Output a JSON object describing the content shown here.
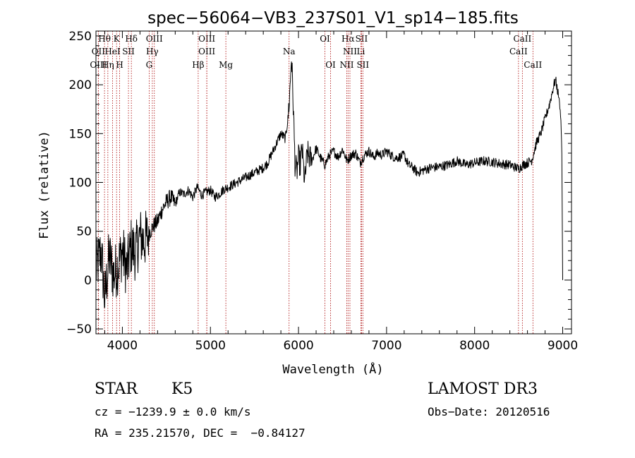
{
  "chart_data": {
    "type": "line",
    "title": "spec−56064−VB3_237S01_V1_sp14−185.fits",
    "xlabel": "Wavelength (Å)",
    "ylabel": "Flux (relative)",
    "xlim": [
      3700,
      9100
    ],
    "ylim": [
      -55,
      255
    ],
    "xticks": [
      4000,
      5000,
      6000,
      7000,
      8000,
      9000
    ],
    "yticks": [
      -50,
      0,
      50,
      100,
      150,
      200,
      250
    ],
    "ytick_labels": [
      "−50",
      "0",
      "50",
      "100",
      "150",
      "200",
      "250"
    ],
    "series": [
      {
        "name": "flux",
        "x": [
          3700,
          3760,
          3800,
          3850,
          3900,
          3950,
          4000,
          4050,
          4100,
          4150,
          4200,
          4250,
          4300,
          4350,
          4400,
          4450,
          4500,
          4550,
          4600,
          4650,
          4700,
          4750,
          4800,
          4850,
          4900,
          4950,
          5000,
          5050,
          5100,
          5150,
          5200,
          5300,
          5400,
          5500,
          5600,
          5650,
          5700,
          5750,
          5800,
          5850,
          5880,
          5900,
          5920,
          5940,
          5960,
          5980,
          6000,
          6020,
          6040,
          6070,
          6100,
          6150,
          6200,
          6250,
          6300,
          6350,
          6400,
          6450,
          6500,
          6550,
          6600,
          6650,
          6700,
          6750,
          6800,
          6850,
          6900,
          6950,
          7000,
          7050,
          7100,
          7150,
          7200,
          7250,
          7300,
          7350,
          7400,
          7500,
          7600,
          7700,
          7800,
          7900,
          8000,
          8100,
          8200,
          8300,
          8400,
          8450,
          8500,
          8550,
          8600,
          8650,
          8700,
          8750,
          8800,
          8850,
          8900,
          8920,
          8940,
          8960,
          8980,
          8990,
          9000
        ],
        "y": [
          10,
          30,
          -20,
          25,
          5,
          15,
          30,
          10,
          35,
          28,
          45,
          40,
          48,
          55,
          60,
          72,
          80,
          85,
          78,
          90,
          88,
          92,
          85,
          95,
          87,
          90,
          92,
          85,
          88,
          93,
          95,
          100,
          105,
          110,
          115,
          120,
          130,
          140,
          150,
          145,
          165,
          190,
          230,
          180,
          120,
          110,
          125,
          118,
          135,
          100,
          130,
          122,
          135,
          125,
          118,
          128,
          132,
          126,
          134,
          122,
          128,
          130,
          120,
          128,
          132,
          126,
          130,
          128,
          132,
          128,
          125,
          126,
          128,
          118,
          115,
          110,
          112,
          115,
          116,
          118,
          122,
          118,
          120,
          122,
          121,
          119,
          118,
          116,
          114,
          118,
          120,
          123,
          140,
          150,
          165,
          180,
          200,
          205,
          195,
          185,
          165,
          130,
          0
        ]
      }
    ],
    "line_marks": [
      {
        "label": "Hθ",
        "x": 3797,
        "row": 1
      },
      {
        "label": "K",
        "x": 3934,
        "row": 1
      },
      {
        "label": "Hδ",
        "x": 4102,
        "row": 1
      },
      {
        "label": "OIII",
        "x": 4363,
        "row": 1
      },
      {
        "label": "OIII",
        "x": 4959,
        "row": 1
      },
      {
        "label": "OI",
        "x": 6300,
        "row": 1
      },
      {
        "label": "Hα",
        "x": 6563,
        "row": 1
      },
      {
        "label": "SII",
        "x": 6716,
        "row": 1
      },
      {
        "label": "CaII",
        "x": 8542,
        "row": 1
      },
      {
        "label": "OII",
        "x": 3727,
        "row": 2
      },
      {
        "label": "HeI",
        "x": 3889,
        "row": 2
      },
      {
        "label": "SII",
        "x": 4069,
        "row": 2
      },
      {
        "label": "Hγ",
        "x": 4340,
        "row": 2
      },
      {
        "label": "OIII",
        "x": 4959,
        "row": 2
      },
      {
        "label": "Na",
        "x": 5893,
        "row": 2
      },
      {
        "label": "NII",
        "x": 6584,
        "row": 2
      },
      {
        "label": "Li",
        "x": 6708,
        "row": 2
      },
      {
        "label": "CaII",
        "x": 8498,
        "row": 2
      },
      {
        "label": "OIII",
        "x": 3727,
        "row": 3
      },
      {
        "label": "Hη",
        "x": 3835,
        "row": 3
      },
      {
        "label": "H",
        "x": 3969,
        "row": 3
      },
      {
        "label": "G",
        "x": 4304,
        "row": 3
      },
      {
        "label": "Hβ",
        "x": 4861,
        "row": 3
      },
      {
        "label": "Mg",
        "x": 5175,
        "row": 3
      },
      {
        "label": "OI",
        "x": 6364,
        "row": 3
      },
      {
        "label": "NII",
        "x": 6548,
        "row": 3
      },
      {
        "label": "SII",
        "x": 6731,
        "row": 3
      },
      {
        "label": "CaII",
        "x": 8662,
        "row": 3
      }
    ],
    "colors": {
      "spectrum": "#000000",
      "markers": "#aa0000",
      "axes": "#000000"
    }
  },
  "info": {
    "class_label": "STAR",
    "subclass": "K5",
    "survey": "LAMOST DR3",
    "cz_line": "cz = −1239.9 ± 0.0 km/s",
    "obs_date": "Obs−Date: 20120516",
    "radec_line": "RA = 235.21570, DEC =  −0.84127"
  }
}
